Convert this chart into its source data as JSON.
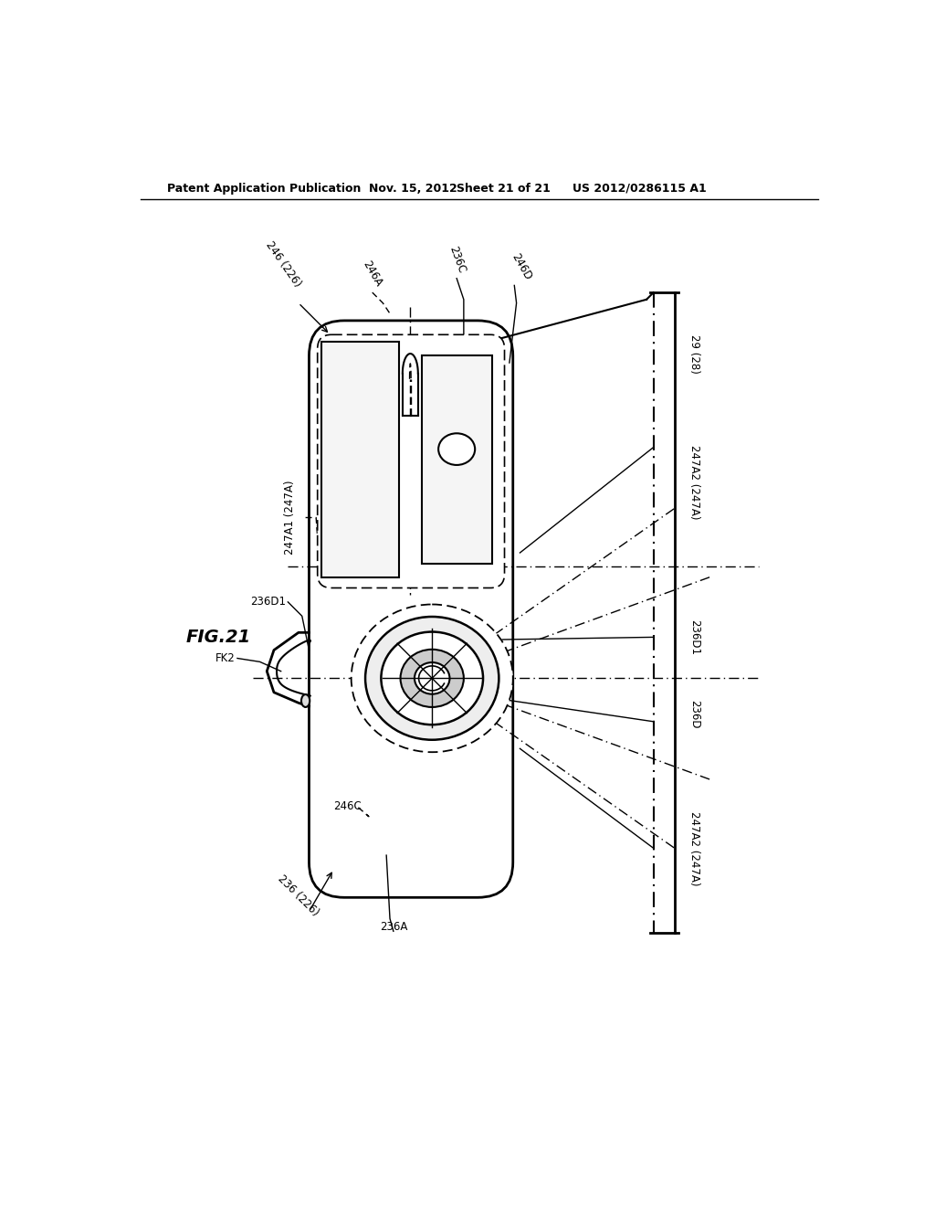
{
  "bg_color": "#ffffff",
  "line_color": "#000000",
  "header_text": "Patent Application Publication",
  "header_date": "Nov. 15, 2012",
  "header_sheet": "Sheet 21 of 21",
  "header_patent": "US 2012/0286115 A1",
  "fig_label": "FIG.21",
  "labels": {
    "246_226_top": "246 (226)",
    "246A_top": "246A",
    "236C_top": "236C",
    "246D_top": "246D",
    "247A1_247A": "247A1 (247A)",
    "236D1_left": "236D1",
    "FK2": "FK2",
    "246C_bottom": "246C",
    "236_226_bottom": "236 (226)",
    "236A_bottom": "236A",
    "29_28_right": "29 (28)",
    "247A2_247A_top": "247A2 (247A)",
    "236D1_right": "236D1",
    "236D_right": "236D",
    "247A2_247A_bottom": "247A2 (247A)"
  }
}
